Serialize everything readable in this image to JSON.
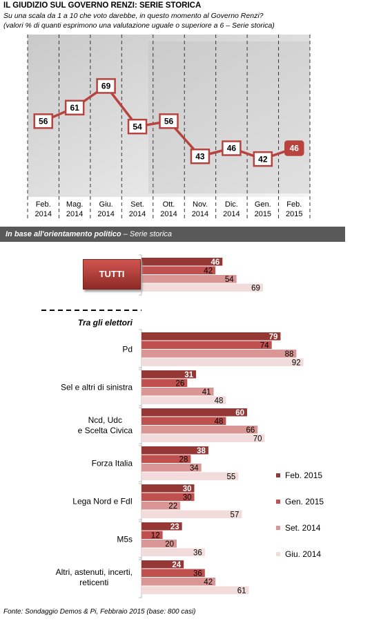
{
  "chart_data": [
    {
      "type": "line",
      "title": "IL GIUDIZIO  SUL GOVERNO RENZI: SERIE STORICA",
      "subtitle": [
        "Su una scala da 1 a 10 che voto darebbe, in questo momento al Governo Renzi?",
        "(valori % di quanti esprimono una valutazione uguale o superiore a 6 – Serie storica)"
      ],
      "categories": [
        "Feb.\n2014",
        "Mag.\n2014",
        "Giu.\n2014",
        "Set.\n2014",
        "Ott.\n2014",
        "Nov.\n2014",
        "Dic.\n2014",
        "Gen.\n2015",
        "Feb.\n2015"
      ],
      "values": [
        56,
        61,
        69,
        54,
        56,
        43,
        46,
        42,
        46
      ],
      "color": "#b8433e",
      "ylim": [
        28,
        88
      ],
      "highlight_last": true
    },
    {
      "type": "hbar",
      "title": "In base all'orientamento politico",
      "subtitle": "– Serie storica",
      "group_label": "Tra gli elettori",
      "categories": [
        "TUTTI",
        "Pd",
        "Sel e altri di sinistra",
        "Ncd, Udc\ne Scelta Civica",
        "Forza Italia",
        "Lega Nord e FdI",
        "M5s",
        "Altri, astenuti, incerti,\nreticenti"
      ],
      "series": [
        {
          "name": "Feb. 2015",
          "color": "#953735",
          "values": [
            46,
            79,
            31,
            60,
            38,
            30,
            23,
            24
          ]
        },
        {
          "name": "Gen. 2015",
          "color": "#c0504d",
          "values": [
            42,
            74,
            26,
            48,
            28,
            30,
            12,
            36
          ]
        },
        {
          "name": "Set. 2014",
          "color": "#d99694",
          "values": [
            54,
            88,
            41,
            66,
            34,
            22,
            20,
            42
          ]
        },
        {
          "name": "Giu. 2014",
          "color": "#f2dcdb",
          "values": [
            69,
            92,
            48,
            70,
            55,
            57,
            36,
            61
          ]
        }
      ],
      "xlim": [
        0,
        100
      ],
      "note": "Fonte: Sondaggio Demos & Pi, Febbraio 2015 (base: 800 casi)"
    }
  ]
}
